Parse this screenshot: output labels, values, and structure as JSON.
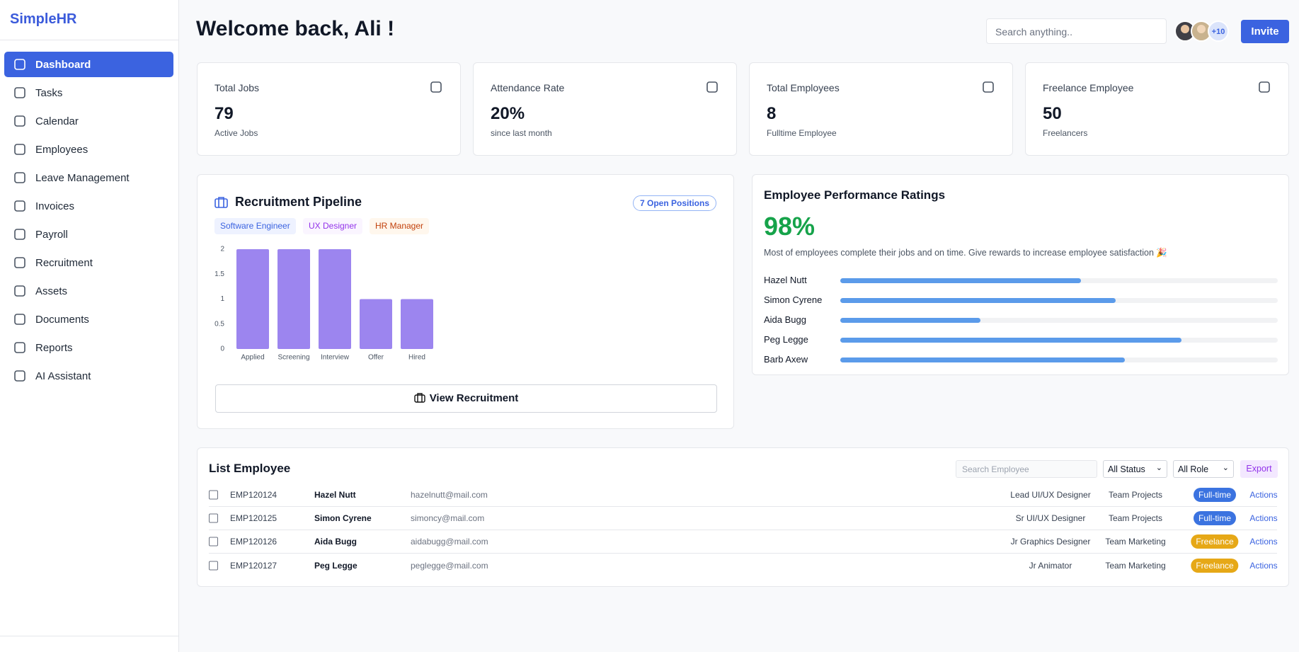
{
  "sidebar": {
    "logo": "SimpleHR",
    "nav": [
      "Dashboard",
      "Tasks",
      "Calendar",
      "Employees",
      "Leave Management",
      "Invoices",
      "Payroll",
      "Recruitment",
      "Assets",
      "Documents",
      "Reports",
      "AI Assistant"
    ]
  },
  "header": {
    "title": "Welcome back, Ali !",
    "search_placeholder": "Search anything..",
    "avatar_more": "+10",
    "invite": "Invite"
  },
  "stats": [
    {
      "label": "Total Jobs",
      "value": "79",
      "caption": "Active Jobs"
    },
    {
      "label": "Attendance Rate",
      "value": "20%",
      "caption": "since last month"
    },
    {
      "label": "Total Employees",
      "value": "8",
      "caption": "Fulltime Employee"
    },
    {
      "label": "Freelance Employee",
      "value": "50",
      "caption": "Freelancers"
    }
  ],
  "recruitment": {
    "title": "Recruitment Pipeline",
    "badge": "7 Open Positions",
    "tags": [
      "Software Engineer",
      "UX Designer",
      "HR Manager"
    ],
    "button": "View Recruitment",
    "chart_data": {
      "type": "bar",
      "categories": [
        "Applied",
        "Screening",
        "Interview",
        "Offer",
        "Hired"
      ],
      "values": [
        2,
        2,
        2,
        1,
        1
      ],
      "color": "#9c85ef",
      "ylim": [
        0,
        2
      ],
      "yticks": [
        0,
        0.5,
        1,
        1.5,
        2
      ]
    }
  },
  "performance": {
    "title": "Employee Performance Ratings",
    "score": "98%",
    "description": "Most of employees complete their jobs and on time. Give rewards to increase employee satisfaction 🎉",
    "chart_data": {
      "type": "bar",
      "horizontal": true,
      "categories": [
        "Hazel Nutt",
        "Simon Cyrene",
        "Aida Bugg",
        "Peg Legge",
        "Barb Axew"
      ],
      "values": [
        55,
        63,
        32,
        78,
        65
      ],
      "xlim": [
        0,
        100
      ],
      "color": "#5b9bea"
    }
  },
  "employees": {
    "title": "List Employee",
    "search_placeholder": "Search Employee",
    "status_filter": "All Status",
    "role_filter": "All Role",
    "export": "Export",
    "rows": [
      [
        "EMP120124",
        "Hazel Nutt",
        "hazelnutt@mail.com",
        "Lead UI/UX Designer",
        "Team Projects",
        "Full-time",
        "Actions"
      ],
      [
        "EMP120125",
        "Simon Cyrene",
        "simoncy@mail.com",
        "Sr UI/UX Designer",
        "Team Projects",
        "Full-time",
        "Actions"
      ],
      [
        "EMP120126",
        "Aida Bugg",
        "aidabugg@mail.com",
        "Jr Graphics Designer",
        "Team Marketing",
        "Freelance",
        "Actions"
      ],
      [
        "EMP120127",
        "Peg Legge",
        "peglegge@mail.com",
        "Jr Animator",
        "Team Marketing",
        "Freelance",
        "Actions"
      ]
    ]
  }
}
